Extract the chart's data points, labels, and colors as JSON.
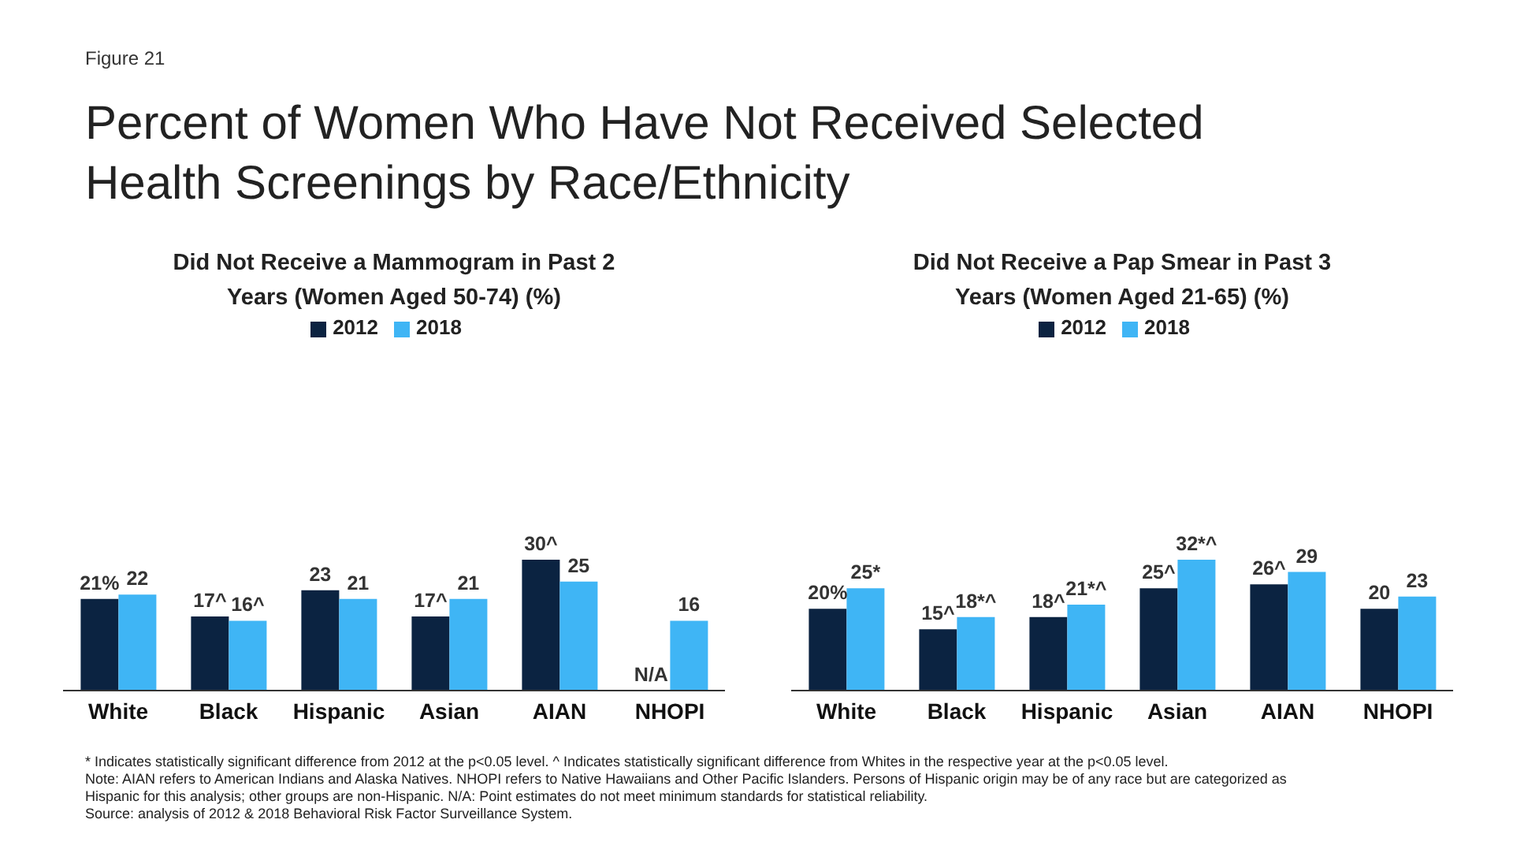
{
  "chart_data": [
    {
      "type": "bar",
      "title": "Percent of Women Who Have Not Received Selected Health Screenings by Race/Ethnicity",
      "subtitle": "Did Not Receive a Mammogram in Past 2 Years (Women Aged 50-74) (%)",
      "categories": [
        "White",
        "Black",
        "Hispanic",
        "Asian",
        "AIAN",
        "NHOPI"
      ],
      "series": [
        {
          "name": "2012",
          "color": "#0b2341",
          "values": [
            21,
            17,
            23,
            17,
            30,
            null
          ],
          "value_labels": [
            "21%",
            "17^",
            "23",
            "17^",
            "30^",
            "N/A"
          ]
        },
        {
          "name": "2018",
          "color": "#3fb5f5",
          "values": [
            22,
            16,
            21,
            21,
            25,
            16
          ],
          "value_labels": [
            "22",
            "16^",
            "21",
            "21",
            "25",
            "16"
          ]
        }
      ],
      "legend": "top",
      "grid": false,
      "tick_labels": "x",
      "annotations": [
        "Figure 21",
        "* Indicates statistically significant difference from 2012 at the p<0.05 level. ^ Indicates statistically significant difference from Whites in the respective year at the p<0.05 level.",
        "Note: AIAN refers to American Indians and Alaska Natives. NHOPI refers to Native Hawaiians and Other Pacific Islanders. Persons of Hispanic origin may be of any race but are categorized as Hispanic for this analysis; other groups are non-Hispanic. N/A: Point estimates do not meet minimum standards for statistical reliability.",
        "Source: analysis of 2012 & 2018 Behavioral Risk Factor Surveillance System."
      ]
    },
    {
      "type": "bar",
      "subtitle": "Did Not Receive a Pap Smear in Past 3 Years (Women Aged 21-65) (%)",
      "categories": [
        "White",
        "Black",
        "Hispanic",
        "Asian",
        "AIAN",
        "NHOPI"
      ],
      "series": [
        {
          "name": "2012",
          "color": "#0b2341",
          "values": [
            20,
            15,
            18,
            25,
            26,
            20
          ],
          "value_labels": [
            "20%",
            "15^",
            "18^",
            "25^",
            "26^",
            "20"
          ]
        },
        {
          "name": "2018",
          "color": "#3fb5f5",
          "values": [
            25,
            18,
            21,
            32,
            29,
            23
          ],
          "value_labels": [
            "25*",
            "18*^",
            "21*^",
            "32*^",
            "29",
            "23"
          ]
        }
      ],
      "legend": "top",
      "grid": false,
      "tick_labels": "x"
    }
  ]
}
